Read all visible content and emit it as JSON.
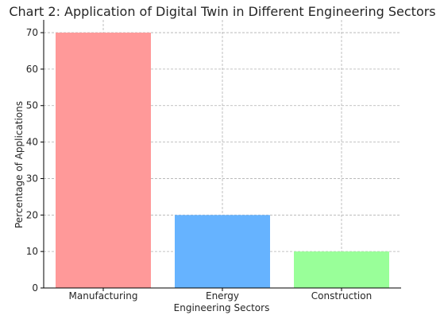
{
  "chart_data": {
    "type": "bar",
    "title": "Chart 2: Application of Digital Twin in Different Engineering Sectors",
    "xlabel": "Engineering Sectors",
    "ylabel": "Percentage of Applications",
    "categories": [
      "Manufacturing",
      "Energy",
      "Construction"
    ],
    "values": [
      70,
      20,
      10
    ],
    "colors": [
      "#ff9999",
      "#66b3ff",
      "#99ff99"
    ],
    "ylim": [
      0,
      73.5
    ],
    "yticks": [
      0,
      10,
      20,
      30,
      40,
      50,
      60,
      70
    ],
    "grid": true
  }
}
